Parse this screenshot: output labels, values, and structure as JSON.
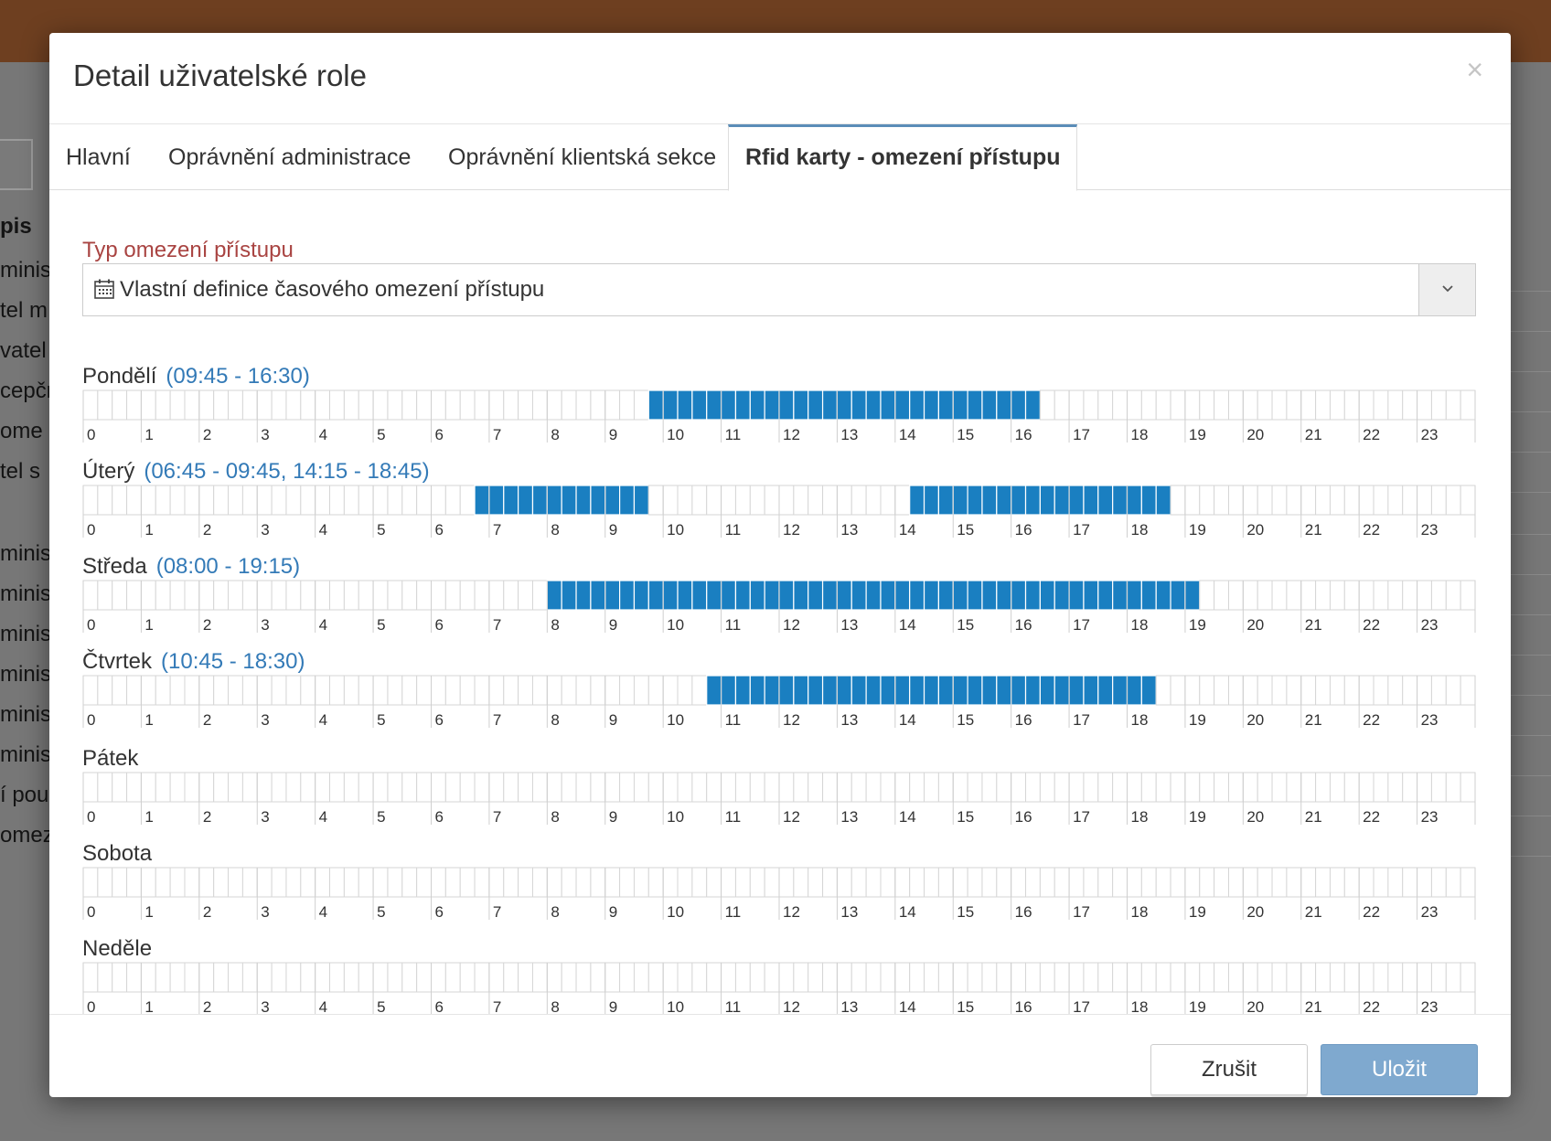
{
  "background": {
    "table_header": "pis",
    "rows": [
      "minis",
      "tel m",
      "vatel",
      "cepčr",
      " ome",
      "tel s",
      "",
      "minis",
      "minis",
      "minis",
      "minis",
      "minis",
      "minis",
      "í pou",
      "omez"
    ]
  },
  "modal": {
    "title": "Detail uživatelské role",
    "close_label": "×",
    "tabs": [
      {
        "label": "Hlavní",
        "active": false
      },
      {
        "label": "Oprávnění administrace",
        "active": false
      },
      {
        "label": "Oprávnění klientská sekce",
        "active": false
      },
      {
        "label": "Rfid karty - omezení přístupu",
        "active": true
      }
    ],
    "access_type": {
      "label": "Typ omezení přístupu",
      "value": "Vlastní definice časového omezení přístupu",
      "icon": "calendar-icon"
    },
    "hour_labels": [
      "0",
      "1",
      "2",
      "3",
      "4",
      "5",
      "6",
      "7",
      "8",
      "9",
      "10",
      "11",
      "12",
      "13",
      "14",
      "15",
      "16",
      "17",
      "18",
      "19",
      "20",
      "21",
      "22",
      "23"
    ],
    "slots_per_hour": 4,
    "selection_color": "#1a7fc1",
    "days": [
      {
        "name": "Pondělí",
        "range": "(09:45 - 16:30)",
        "intervals": [
          [
            "09:45",
            "16:30"
          ]
        ]
      },
      {
        "name": "Úterý",
        "range": "(06:45 - 09:45, 14:15 - 18:45)",
        "intervals": [
          [
            "06:45",
            "09:45"
          ],
          [
            "14:15",
            "18:45"
          ]
        ]
      },
      {
        "name": "Středa",
        "range": "(08:00 - 19:15)",
        "intervals": [
          [
            "08:00",
            "19:15"
          ]
        ]
      },
      {
        "name": "Čtvrtek",
        "range": "(10:45 - 18:30)",
        "intervals": [
          [
            "10:45",
            "18:30"
          ]
        ]
      },
      {
        "name": "Pátek",
        "range": "",
        "intervals": []
      },
      {
        "name": "Sobota",
        "range": "",
        "intervals": []
      },
      {
        "name": "Neděle",
        "range": "",
        "intervals": []
      }
    ],
    "buttons": {
      "cancel": "Zrušit",
      "save": "Uložit"
    }
  }
}
